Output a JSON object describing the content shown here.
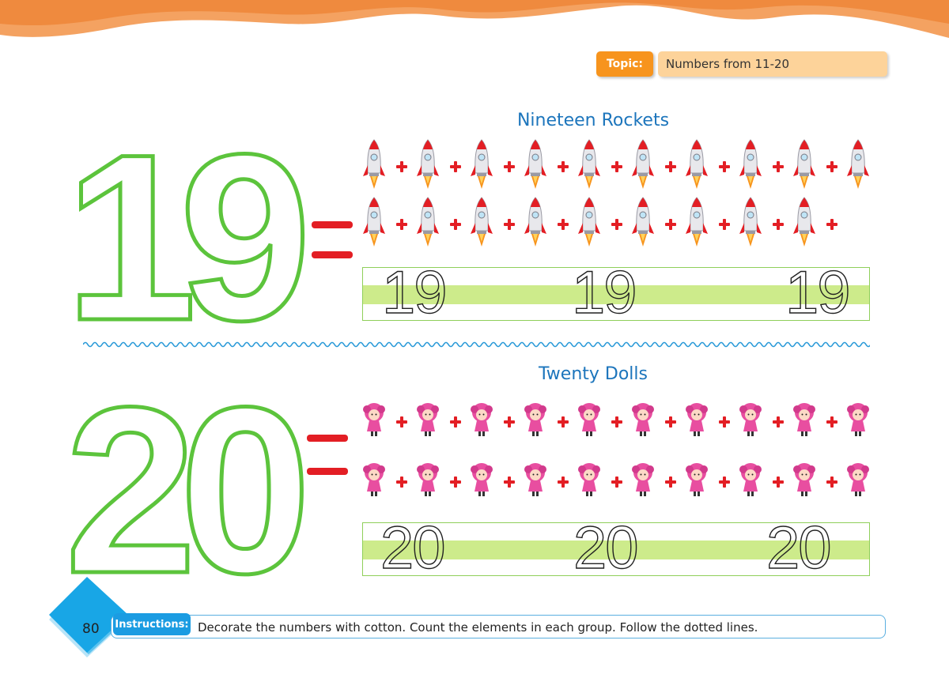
{
  "header": {
    "topic_label": "Topic:",
    "topic_value": "Numbers from 11-20",
    "colors": {
      "wave": "#f08a3c",
      "tag": "#f7941d",
      "tag_bg": "#fdd39a"
    }
  },
  "sections": [
    {
      "title": "Nineteen Rockets",
      "number": "19",
      "item_icon": "rocket-icon",
      "rows": [
        10,
        9
      ],
      "trace": [
        "19",
        "19",
        "19"
      ]
    },
    {
      "title": "Twenty Dolls",
      "number": "20",
      "item_icon": "doll-icon",
      "rows": [
        10,
        10
      ],
      "trace": [
        "20",
        "20",
        "20"
      ]
    }
  ],
  "footer": {
    "page_number": "80",
    "instructions_label": "Instructions:",
    "instructions_text": "Decorate the numbers with cotton. Count the elements in each group. Follow the dotted lines."
  },
  "colors": {
    "number_outline": "#5cc43c",
    "equals": "#e31e24",
    "title": "#1c75bc",
    "trace_band": "#cdeb8b"
  }
}
